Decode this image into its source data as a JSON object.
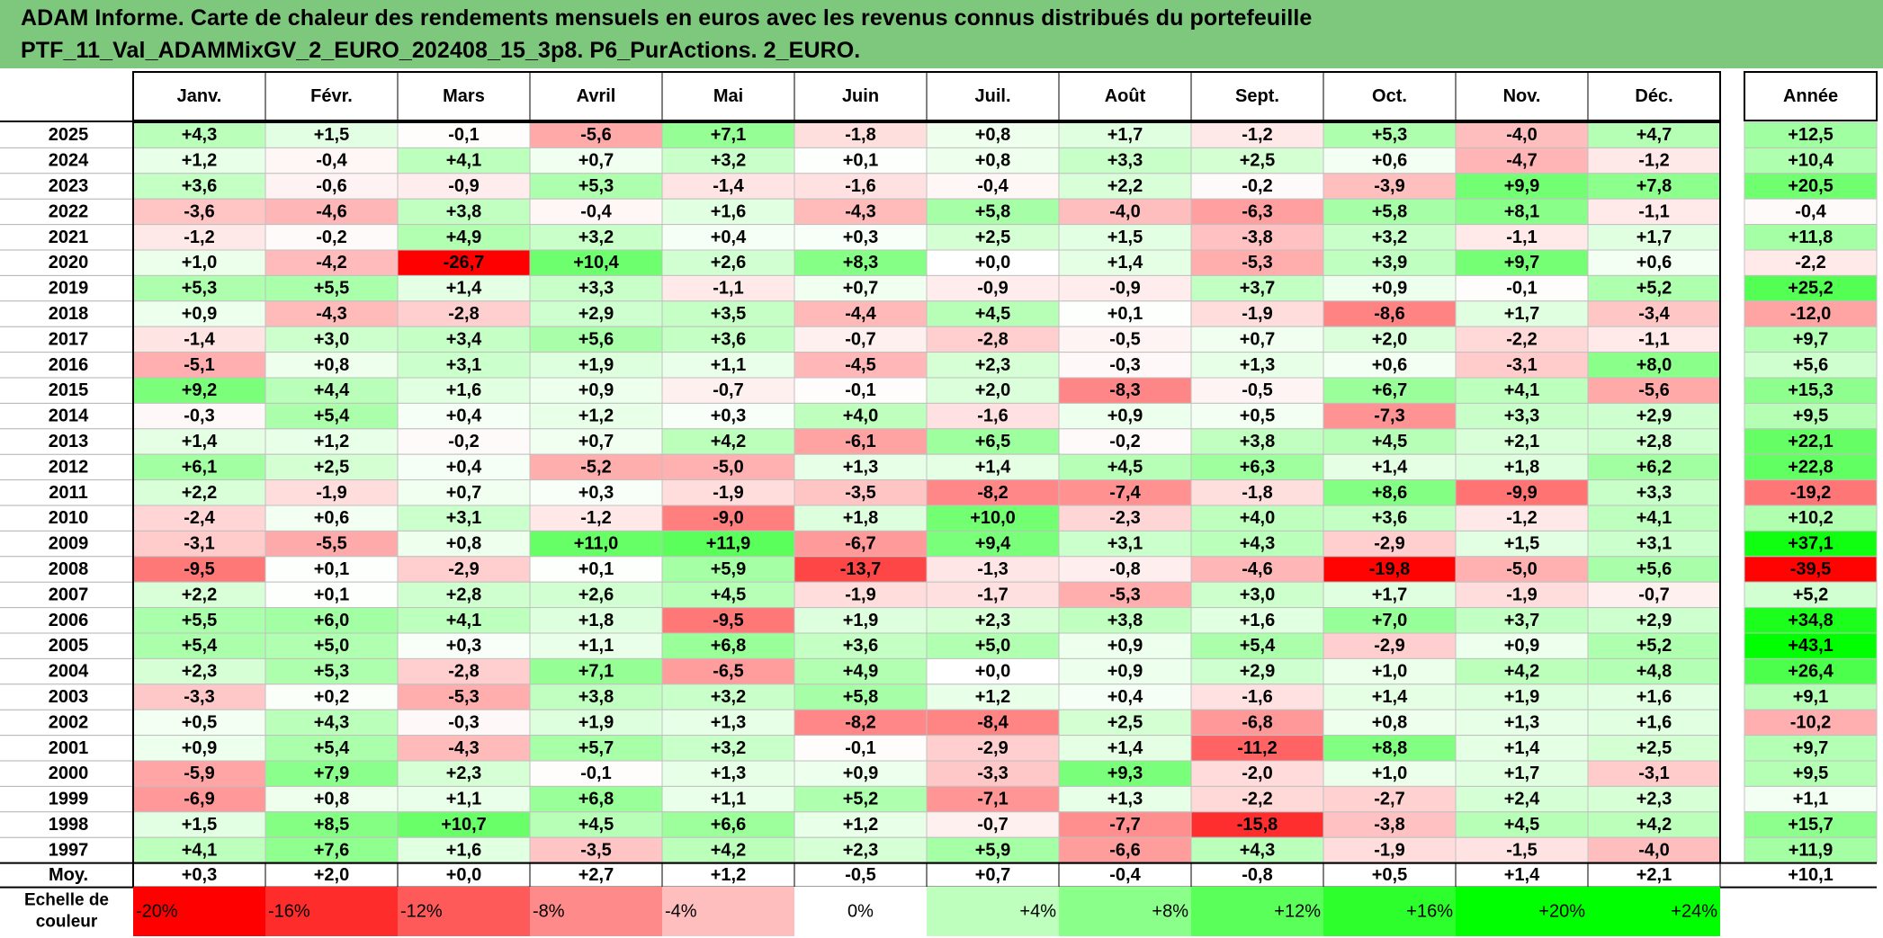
{
  "title": {
    "line1": "ADAM Informe. Carte de chaleur des rendements mensuels en euros avec les revenus connus distribués du portefeuille",
    "line2": "PTF_11_Val_ADAMMixGV_2_EURO_202408_15_3p8. P6_PurActions. 2_EURO."
  },
  "chart_data": {
    "type": "heatmap",
    "months": [
      "Janv.",
      "Févr.",
      "Mars",
      "Avril",
      "Mai",
      "Juin",
      "Juil.",
      "Août",
      "Sept.",
      "Oct.",
      "Nov.",
      "Déc."
    ],
    "year_header": "Année",
    "rows": [
      {
        "label": "2025",
        "values": [
          "+4,3",
          "+1,5",
          "-0,1",
          "-5,6",
          "+7,1",
          "-1,8",
          "+0,8",
          "+1,7",
          "-1,2",
          "+5,3",
          "-4,0",
          "+4,7"
        ],
        "annual": "+12,5"
      },
      {
        "label": "2024",
        "values": [
          "+1,2",
          "-0,4",
          "+4,1",
          "+0,7",
          "+3,2",
          "+0,1",
          "+0,8",
          "+3,3",
          "+2,5",
          "+0,6",
          "-4,7",
          "-1,2"
        ],
        "annual": "+10,4"
      },
      {
        "label": "2023",
        "values": [
          "+3,6",
          "-0,6",
          "-0,9",
          "+5,3",
          "-1,4",
          "-1,6",
          "-0,4",
          "+2,2",
          "-0,2",
          "-3,9",
          "+9,9",
          "+7,8"
        ],
        "annual": "+20,5"
      },
      {
        "label": "2022",
        "values": [
          "-3,6",
          "-4,6",
          "+3,8",
          "-0,4",
          "+1,6",
          "-4,3",
          "+5,8",
          "-4,0",
          "-6,3",
          "+5,8",
          "+8,1",
          "-1,1"
        ],
        "annual": "-0,4"
      },
      {
        "label": "2021",
        "values": [
          "-1,2",
          "-0,2",
          "+4,9",
          "+3,2",
          "+0,4",
          "+0,3",
          "+2,5",
          "+1,5",
          "-3,8",
          "+3,2",
          "-1,1",
          "+1,7"
        ],
        "annual": "+11,8"
      },
      {
        "label": "2020",
        "values": [
          "+1,0",
          "-4,2",
          "-26,7",
          "+10,4",
          "+2,6",
          "+8,3",
          "+0,0",
          "+1,4",
          "-5,3",
          "+3,9",
          "+9,7",
          "+0,6"
        ],
        "annual": "-2,2"
      },
      {
        "label": "2019",
        "values": [
          "+5,3",
          "+5,5",
          "+1,4",
          "+3,3",
          "-1,1",
          "+0,7",
          "-0,9",
          "-0,9",
          "+3,7",
          "+0,9",
          "-0,1",
          "+5,2"
        ],
        "annual": "+25,2"
      },
      {
        "label": "2018",
        "values": [
          "+0,9",
          "-4,3",
          "-2,8",
          "+2,9",
          "+3,5",
          "-4,4",
          "+4,5",
          "+0,1",
          "-1,9",
          "-8,6",
          "+1,7",
          "-3,4"
        ],
        "annual": "-12,0"
      },
      {
        "label": "2017",
        "values": [
          "-1,4",
          "+3,0",
          "+3,4",
          "+5,6",
          "+3,6",
          "-0,7",
          "-2,8",
          "-0,5",
          "+0,7",
          "+2,0",
          "-2,2",
          "-1,1"
        ],
        "annual": "+9,7"
      },
      {
        "label": "2016",
        "values": [
          "-5,1",
          "+0,8",
          "+3,1",
          "+1,9",
          "+1,1",
          "-4,5",
          "+2,3",
          "-0,3",
          "+1,3",
          "+0,6",
          "-3,1",
          "+8,0"
        ],
        "annual": "+5,6"
      },
      {
        "label": "2015",
        "values": [
          "+9,2",
          "+4,4",
          "+1,6",
          "+0,9",
          "-0,7",
          "-0,1",
          "+2,0",
          "-8,3",
          "-0,5",
          "+6,7",
          "+4,1",
          "-5,6"
        ],
        "annual": "+15,3"
      },
      {
        "label": "2014",
        "values": [
          "-0,3",
          "+5,4",
          "+0,4",
          "+1,2",
          "+0,3",
          "+4,0",
          "-1,6",
          "+0,9",
          "+0,5",
          "-7,3",
          "+3,3",
          "+2,9"
        ],
        "annual": "+9,5"
      },
      {
        "label": "2013",
        "values": [
          "+1,4",
          "+1,2",
          "-0,2",
          "+0,7",
          "+4,2",
          "-6,1",
          "+6,5",
          "-0,2",
          "+3,8",
          "+4,5",
          "+2,1",
          "+2,8"
        ],
        "annual": "+22,1"
      },
      {
        "label": "2012",
        "values": [
          "+6,1",
          "+2,5",
          "+0,4",
          "-5,2",
          "-5,0",
          "+1,3",
          "+1,4",
          "+4,5",
          "+6,3",
          "+1,4",
          "+1,8",
          "+6,2"
        ],
        "annual": "+22,8"
      },
      {
        "label": "2011",
        "values": [
          "+2,2",
          "-1,9",
          "+0,7",
          "+0,3",
          "-1,9",
          "-3,5",
          "-8,2",
          "-7,4",
          "-1,8",
          "+8,6",
          "-9,9",
          "+3,3"
        ],
        "annual": "-19,2"
      },
      {
        "label": "2010",
        "values": [
          "-2,4",
          "+0,6",
          "+3,1",
          "-1,2",
          "-9,0",
          "+1,8",
          "+10,0",
          "-2,3",
          "+4,0",
          "+3,6",
          "-1,2",
          "+4,1"
        ],
        "annual": "+10,2"
      },
      {
        "label": "2009",
        "values": [
          "-3,1",
          "-5,5",
          "+0,8",
          "+11,0",
          "+11,9",
          "-6,7",
          "+9,4",
          "+3,1",
          "+4,3",
          "-2,9",
          "+1,5",
          "+3,1"
        ],
        "annual": "+37,1"
      },
      {
        "label": "2008",
        "values": [
          "-9,5",
          "+0,1",
          "-2,9",
          "+0,1",
          "+5,9",
          "-13,7",
          "-1,3",
          "-0,8",
          "-4,6",
          "-19,8",
          "-5,0",
          "+5,6"
        ],
        "annual": "-39,5"
      },
      {
        "label": "2007",
        "values": [
          "+2,2",
          "+0,1",
          "+2,8",
          "+2,6",
          "+4,5",
          "-1,9",
          "-1,7",
          "-5,3",
          "+3,0",
          "+1,7",
          "-1,9",
          "-0,7"
        ],
        "annual": "+5,2"
      },
      {
        "label": "2006",
        "values": [
          "+5,5",
          "+6,0",
          "+4,1",
          "+1,8",
          "-9,5",
          "+1,9",
          "+2,3",
          "+3,8",
          "+1,6",
          "+7,0",
          "+3,7",
          "+2,9"
        ],
        "annual": "+34,8"
      },
      {
        "label": "2005",
        "values": [
          "+5,4",
          "+5,0",
          "+0,3",
          "+1,1",
          "+6,8",
          "+3,6",
          "+5,0",
          "+0,9",
          "+5,4",
          "-2,9",
          "+0,9",
          "+5,2"
        ],
        "annual": "+43,1"
      },
      {
        "label": "2004",
        "values": [
          "+2,3",
          "+5,3",
          "-2,8",
          "+7,1",
          "-6,5",
          "+4,9",
          "+0,0",
          "+0,9",
          "+2,9",
          "+1,0",
          "+4,2",
          "+4,8"
        ],
        "annual": "+26,4"
      },
      {
        "label": "2003",
        "values": [
          "-3,3",
          "+0,2",
          "-5,3",
          "+3,8",
          "+3,2",
          "+5,8",
          "+1,2",
          "+0,4",
          "-1,6",
          "+1,4",
          "+1,9",
          "+1,6"
        ],
        "annual": "+9,1"
      },
      {
        "label": "2002",
        "values": [
          "+0,5",
          "+4,3",
          "-0,3",
          "+1,9",
          "+1,3",
          "-8,2",
          "-8,4",
          "+2,5",
          "-6,8",
          "+0,8",
          "+1,3",
          "+1,6"
        ],
        "annual": "-10,2"
      },
      {
        "label": "2001",
        "values": [
          "+0,9",
          "+5,4",
          "-4,3",
          "+5,7",
          "+3,2",
          "-0,1",
          "-2,9",
          "+1,4",
          "-11,2",
          "+8,8",
          "+1,4",
          "+2,5"
        ],
        "annual": "+9,7"
      },
      {
        "label": "2000",
        "values": [
          "-5,9",
          "+7,9",
          "+2,3",
          "-0,1",
          "+1,3",
          "+0,9",
          "-3,3",
          "+9,3",
          "-2,0",
          "+1,0",
          "+1,7",
          "-3,1"
        ],
        "annual": "+9,5"
      },
      {
        "label": "1999",
        "values": [
          "-6,9",
          "+0,8",
          "+1,1",
          "+6,8",
          "+1,1",
          "+5,2",
          "-7,1",
          "+1,3",
          "-2,2",
          "-2,7",
          "+2,4",
          "+2,3"
        ],
        "annual": "+1,1"
      },
      {
        "label": "1998",
        "values": [
          "+1,5",
          "+8,5",
          "+10,7",
          "+4,5",
          "+6,6",
          "+1,2",
          "-0,7",
          "-7,7",
          "-15,8",
          "-3,8",
          "+4,5",
          "+4,2"
        ],
        "annual": "+15,7"
      },
      {
        "label": "1997",
        "values": [
          "+4,1",
          "+7,6",
          "+1,6",
          "-3,5",
          "+4,2",
          "+2,3",
          "+5,9",
          "-6,6",
          "+4,3",
          "-1,9",
          "-1,5",
          "-4,0"
        ],
        "annual": "+11,9"
      }
    ],
    "average": {
      "label": "Moy.",
      "values": [
        "+0,3",
        "+2,0",
        "+0,0",
        "+2,7",
        "+1,2",
        "-0,5",
        "+0,7",
        "-0,4",
        "-0,8",
        "+0,5",
        "+1,4",
        "+2,1"
      ],
      "annual": "+10,1"
    },
    "scale": {
      "label_line1": "Echelle de",
      "label_line2": "couleur",
      "steps": [
        "-20%",
        "-16%",
        "-12%",
        "-8%",
        "-4%",
        "0%",
        "+4%",
        "+8%",
        "+12%",
        "+16%",
        "+20%",
        "+24%"
      ],
      "step_values": [
        -20,
        -16,
        -12,
        -8,
        -4,
        0,
        4,
        8,
        12,
        16,
        20,
        24
      ]
    },
    "colors": {
      "title_background": "#7ec87e",
      "negative_max": "#ff0000",
      "neutral": "#ffffff",
      "positive_max": "#00ff00"
    },
    "color_domain": {
      "monthly_extreme": 20,
      "annual_extreme": 40
    }
  }
}
